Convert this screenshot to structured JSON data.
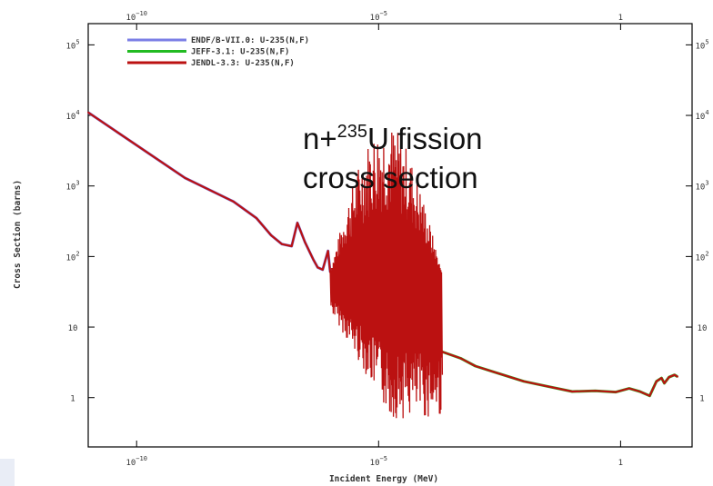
{
  "chart_data": {
    "type": "line",
    "log_x": true,
    "log_y": true,
    "xlabel": "Incident Energy (MeV)",
    "ylabel": "Cross Section (barns)",
    "xlim": [
      1e-11,
      30
    ],
    "ylim": [
      0.2,
      200000
    ],
    "xticks": [
      {
        "value": 1e-10,
        "base": "10",
        "exp": "−10"
      },
      {
        "value": 1e-05,
        "base": "10",
        "exp": "−5"
      },
      {
        "value": 1,
        "label": "1"
      }
    ],
    "yticks": [
      {
        "value": 1,
        "label": "1"
      },
      {
        "value": 10,
        "label": "10"
      },
      {
        "value": 100,
        "base": "10",
        "exp": "2"
      },
      {
        "value": 1000,
        "base": "10",
        "exp": "3"
      },
      {
        "value": 10000,
        "base": "10",
        "exp": "4"
      },
      {
        "value": 100000,
        "base": "10",
        "exp": "5"
      }
    ],
    "grid": false,
    "legend_position": "top-left",
    "annotation": {
      "prefix": "n+",
      "sup": "235",
      "rest": "U fission",
      "line2": "cross section"
    },
    "series": [
      {
        "name": "ENDF/B-VII.0: U-235(N,F)",
        "color": "#7b7fe6",
        "points": [
          [
            1e-11,
            11000
          ],
          [
            1e-09,
            1300
          ],
          [
            1e-08,
            600
          ],
          [
            3e-08,
            350
          ],
          [
            6e-08,
            200
          ],
          [
            1e-07,
            150
          ],
          [
            1.6e-07,
            140
          ],
          [
            2.1e-07,
            300
          ],
          [
            3e-07,
            160
          ],
          [
            4.5e-07,
            90
          ],
          [
            5.5e-07,
            70
          ],
          [
            7e-07,
            65
          ],
          [
            9e-07,
            120
          ],
          [
            1e-06,
            60
          ]
        ]
      },
      {
        "name": "JEFF-3.1: U-235(N,F)",
        "color": "#22bb22",
        "points": [
          [
            0.0002,
            4.5
          ],
          [
            0.0005,
            3.6
          ],
          [
            0.001,
            2.8
          ],
          [
            0.003,
            2.2
          ],
          [
            0.01,
            1.7
          ],
          [
            0.03,
            1.45
          ],
          [
            0.1,
            1.22
          ],
          [
            0.3,
            1.25
          ],
          [
            0.8,
            1.2
          ],
          [
            1.5,
            1.35
          ],
          [
            2.5,
            1.22
          ],
          [
            4,
            1.06
          ],
          [
            5.5,
            1.7
          ],
          [
            7,
            1.9
          ],
          [
            8,
            1.6
          ],
          [
            10,
            1.95
          ],
          [
            13,
            2.1
          ],
          [
            15,
            1.98
          ]
        ]
      },
      {
        "name": "JENDL-3.3: U-235(N,F)",
        "color": "#bb1111",
        "points": [
          [
            1e-11,
            11000
          ],
          [
            1e-09,
            1300
          ],
          [
            1e-08,
            600
          ],
          [
            3e-08,
            350
          ],
          [
            6e-08,
            200
          ],
          [
            1e-07,
            150
          ],
          [
            1.6e-07,
            140
          ],
          [
            2.1e-07,
            300
          ],
          [
            3e-07,
            160
          ],
          [
            4.5e-07,
            90
          ],
          [
            5.5e-07,
            70
          ],
          [
            7e-07,
            65
          ],
          [
            9e-07,
            120
          ],
          [
            1e-06,
            60
          ],
          [
            1e-05,
            50
          ],
          [
            5e-05,
            20
          ],
          [
            0.0002,
            4.5
          ],
          [
            0.0005,
            3.6
          ],
          [
            0.001,
            2.8
          ],
          [
            0.003,
            2.2
          ],
          [
            0.01,
            1.7
          ],
          [
            0.03,
            1.45
          ],
          [
            0.1,
            1.22
          ],
          [
            0.3,
            1.25
          ],
          [
            0.8,
            1.2
          ],
          [
            1.5,
            1.35
          ],
          [
            2.5,
            1.22
          ],
          [
            4,
            1.06
          ],
          [
            5.5,
            1.7
          ],
          [
            7,
            1.9
          ],
          [
            8,
            1.6
          ],
          [
            10,
            1.95
          ],
          [
            13,
            2.1
          ],
          [
            15,
            1.98
          ]
        ],
        "resonance_band": {
          "x_from": 1e-06,
          "x_to": 0.0002,
          "y_max_range": [
            100,
            8000
          ],
          "y_min_range": [
            0.5,
            25
          ]
        }
      }
    ]
  }
}
